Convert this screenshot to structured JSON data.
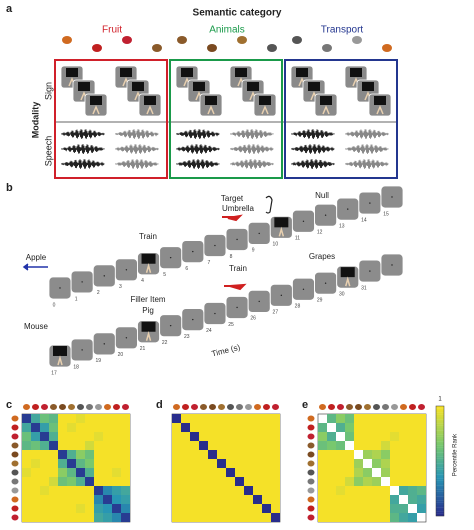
{
  "panel_a": {
    "label": "a",
    "title": "Semantic category",
    "categories": [
      {
        "name": "Fruit",
        "color": "#d0202a"
      },
      {
        "name": "Animals",
        "color": "#1a9a4a"
      },
      {
        "name": "Transport",
        "color": "#23368f"
      }
    ],
    "modality_label": "Modality",
    "modalities": [
      "Sign",
      "Speech"
    ]
  },
  "panel_b": {
    "label": "b",
    "annotations": [
      "Apple",
      "Train",
      "Target",
      "Umbrella",
      "Null",
      "Grapes",
      "Train",
      "Filler Item",
      "Pig",
      "Mouse"
    ],
    "time_label": "Time (s)",
    "row1_ticks": [
      0,
      1,
      2,
      3,
      4,
      5,
      6,
      7,
      8,
      9,
      10,
      11,
      12,
      13,
      14,
      15
    ],
    "row2_ticks": [
      17,
      18,
      19,
      20,
      21,
      22,
      23,
      24,
      25,
      26,
      27,
      28,
      29,
      30,
      31
    ]
  },
  "matrices": [
    {
      "label": "c",
      "values": [
        [
          0.05,
          0.45,
          0.6,
          0.55,
          1,
          1,
          0.95,
          1,
          1,
          1,
          1,
          1
        ],
        [
          0.45,
          0.05,
          0.4,
          0.6,
          1,
          0.95,
          1,
          1,
          1,
          1,
          1,
          1
        ],
        [
          0.6,
          0.4,
          0.05,
          0.5,
          1,
          1,
          1,
          1,
          0.95,
          1,
          1,
          1
        ],
        [
          0.55,
          0.6,
          0.5,
          0.05,
          1,
          1,
          1,
          0.9,
          1,
          1,
          1,
          1
        ],
        [
          1,
          1,
          1,
          1,
          0.05,
          0.5,
          0.7,
          0.6,
          1,
          1,
          1,
          1
        ],
        [
          1,
          0.95,
          1,
          1,
          0.5,
          0.05,
          0.55,
          0.65,
          1,
          1,
          1,
          1
        ],
        [
          0.95,
          1,
          1,
          1,
          0.7,
          0.55,
          0.05,
          0.5,
          1,
          1,
          0.95,
          1
        ],
        [
          1,
          1,
          1,
          0.9,
          0.6,
          0.65,
          0.5,
          0.05,
          1,
          1,
          1,
          1
        ],
        [
          1,
          1,
          0.95,
          1,
          1,
          1,
          1,
          1,
          0.05,
          0.3,
          0.4,
          0.45
        ],
        [
          1,
          1,
          1,
          1,
          1,
          1,
          1,
          1,
          0.3,
          0.05,
          0.35,
          0.4
        ],
        [
          1,
          1,
          1,
          1,
          1,
          1,
          0.95,
          1,
          0.4,
          0.35,
          0.05,
          0.3
        ],
        [
          1,
          1,
          1,
          1,
          1,
          1,
          1,
          1,
          0.45,
          0.4,
          0.3,
          0.05
        ]
      ]
    },
    {
      "label": "d",
      "values": [
        [
          0,
          1,
          1,
          1,
          1,
          1,
          1,
          1,
          1,
          1,
          1,
          1
        ],
        [
          1,
          0,
          1,
          1,
          1,
          1,
          1,
          1,
          1,
          1,
          1,
          1
        ],
        [
          1,
          1,
          0,
          1,
          1,
          1,
          1,
          1,
          1,
          1,
          1,
          1
        ],
        [
          1,
          1,
          1,
          0,
          1,
          1,
          1,
          1,
          1,
          1,
          1,
          1
        ],
        [
          1,
          1,
          1,
          1,
          0,
          1,
          1,
          1,
          1,
          1,
          1,
          1
        ],
        [
          1,
          1,
          1,
          1,
          1,
          0,
          1,
          1,
          1,
          1,
          1,
          1
        ],
        [
          1,
          1,
          1,
          1,
          1,
          1,
          0,
          1,
          1,
          1,
          1,
          1
        ],
        [
          1,
          1,
          1,
          1,
          1,
          1,
          1,
          0,
          1,
          1,
          1,
          1
        ],
        [
          1,
          1,
          1,
          1,
          1,
          1,
          1,
          1,
          0,
          1,
          1,
          1
        ],
        [
          1,
          1,
          1,
          1,
          1,
          1,
          1,
          1,
          1,
          0,
          1,
          1
        ],
        [
          1,
          1,
          1,
          1,
          1,
          1,
          1,
          1,
          1,
          1,
          0,
          1
        ],
        [
          1,
          1,
          1,
          1,
          1,
          1,
          1,
          1,
          1,
          1,
          1,
          0
        ]
      ]
    },
    {
      "label": "e",
      "values": [
        [
          null,
          0.55,
          0.7,
          0.6,
          1,
          1,
          1,
          1,
          1,
          1,
          1,
          1
        ],
        [
          0.55,
          null,
          0.5,
          0.65,
          1,
          1,
          1,
          1,
          1,
          1,
          1,
          1
        ],
        [
          0.7,
          0.5,
          null,
          0.6,
          1,
          1,
          1,
          1,
          0.95,
          1,
          1,
          1
        ],
        [
          0.6,
          0.65,
          0.6,
          null,
          1,
          1,
          1,
          0.9,
          1,
          1,
          1,
          1
        ],
        [
          1,
          1,
          1,
          1,
          null,
          0.75,
          0.8,
          0.7,
          1,
          1,
          1,
          1
        ],
        [
          1,
          1,
          1,
          1,
          0.75,
          null,
          0.7,
          0.8,
          1,
          1,
          1,
          1
        ],
        [
          1,
          1,
          1,
          1,
          0.8,
          0.7,
          null,
          0.75,
          1,
          1,
          1,
          1
        ],
        [
          1,
          1,
          1,
          0.9,
          0.7,
          0.8,
          0.75,
          null,
          1,
          1,
          1,
          1
        ],
        [
          1,
          1,
          0.95,
          1,
          1,
          1,
          1,
          1,
          null,
          0.45,
          0.5,
          0.55
        ],
        [
          1,
          1,
          1,
          1,
          1,
          1,
          1,
          1,
          0.45,
          null,
          0.5,
          0.45
        ],
        [
          1,
          1,
          1,
          1,
          1,
          1,
          1,
          1,
          0.5,
          0.5,
          null,
          0.4
        ],
        [
          1,
          1,
          1,
          1,
          1,
          1,
          1,
          1,
          0.55,
          0.45,
          0.4,
          null
        ]
      ]
    }
  ],
  "colorbar": {
    "label": "Percentile Rank",
    "lim": [
      0,
      1
    ],
    "ticks": [
      1
    ]
  }
}
